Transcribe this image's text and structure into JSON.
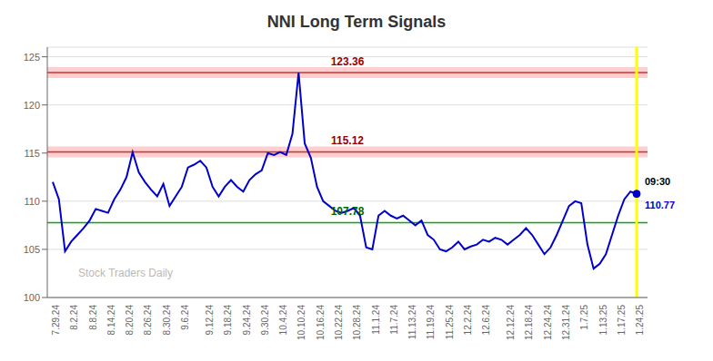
{
  "chart_data": {
    "type": "line",
    "title": "NNI Long Term Signals",
    "categories": [
      "7.29.24",
      null,
      null,
      "8.2.24",
      null,
      null,
      "8.8.24",
      null,
      null,
      "8.14.24",
      null,
      null,
      "8.20.24",
      null,
      null,
      "8.26.24",
      null,
      null,
      "8.30.24",
      null,
      null,
      "9.6.24",
      null,
      null,
      null,
      "9.12.24",
      null,
      null,
      "9.18.24",
      null,
      null,
      "9.24.24",
      null,
      null,
      "9.30.24",
      null,
      null,
      "10.4.24",
      null,
      null,
      "10.10.24",
      null,
      null,
      "10.16.24",
      null,
      null,
      "10.22.24",
      null,
      null,
      "10.28.24",
      null,
      null,
      "11.1.24",
      null,
      null,
      "11.7.24",
      null,
      null,
      "11.13.24",
      null,
      null,
      "11.19.24",
      null,
      null,
      "11.25.24",
      null,
      null,
      "12.2.24",
      null,
      null,
      "12.6.24",
      null,
      null,
      null,
      "12.12.24",
      null,
      null,
      "12.18.24",
      null,
      null,
      "12.24.24",
      null,
      null,
      "12.31.24",
      null,
      null,
      "1.7.25",
      null,
      null,
      "1.13.25",
      null,
      null,
      "1.17.25",
      null,
      null,
      "1.24.25"
    ],
    "values": [
      112.0,
      110.2,
      104.8,
      105.8,
      106.5,
      107.2,
      108.0,
      109.2,
      109.0,
      108.8,
      110.2,
      111.2,
      112.5,
      115.1,
      113.0,
      112.0,
      111.2,
      110.5,
      111.8,
      109.5,
      110.5,
      111.5,
      113.5,
      113.8,
      114.2,
      113.5,
      111.5,
      110.5,
      111.5,
      112.2,
      111.5,
      111.0,
      112.2,
      112.8,
      113.2,
      115.0,
      114.8,
      115.12,
      114.8,
      117.0,
      123.36,
      116.0,
      114.5,
      111.5,
      110.0,
      109.5,
      109.0,
      108.8,
      109.0,
      109.3,
      108.5,
      105.2,
      105.0,
      108.5,
      109.0,
      108.5,
      108.2,
      108.5,
      108.0,
      107.5,
      108.0,
      106.5,
      106.0,
      105.0,
      104.8,
      105.2,
      105.8,
      105.0,
      105.3,
      105.5,
      106.0,
      105.8,
      106.2,
      106.0,
      105.5,
      106.0,
      106.5,
      107.2,
      106.5,
      105.5,
      104.5,
      105.2,
      106.5,
      108.0,
      109.5,
      110.0,
      109.8,
      105.5,
      103.0,
      103.5,
      104.5,
      106.5,
      108.5,
      110.2,
      111.0,
      110.77
    ],
    "color": "#0000cc",
    "ylim": [
      100,
      126
    ],
    "yticks": [
      100,
      105,
      110,
      115,
      120,
      125
    ],
    "grid": true,
    "reference_lines": [
      {
        "value": 123.36,
        "label": "123.36",
        "color": "#cc3333",
        "label_color": "#990000",
        "band_color": "#ffbbbb"
      },
      {
        "value": 115.12,
        "label": "115.12",
        "color": "#cc3333",
        "label_color": "#990000",
        "band_color": "#ffbbbb"
      },
      {
        "value": 107.78,
        "label": "107.78",
        "color": "#00aa00",
        "label_color": "#006600"
      }
    ],
    "last_point": {
      "line_color": "yellow",
      "labels": [
        {
          "text": "09:30",
          "color": "black"
        },
        {
          "text": "110.77",
          "color": "#0000cc"
        }
      ]
    },
    "watermark": {
      "text": "Stock Traders Daily",
      "color": "gray"
    }
  }
}
